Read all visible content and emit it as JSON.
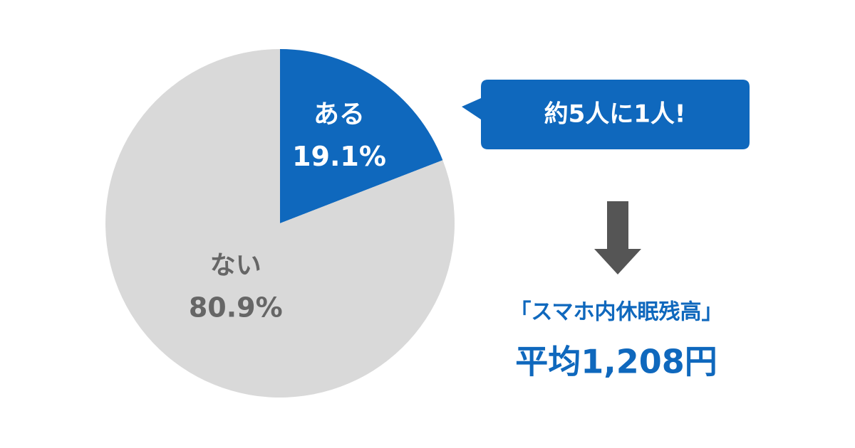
{
  "chart_data": {
    "type": "pie",
    "categories": [
      "ある",
      "ない"
    ],
    "values": [
      19.1,
      80.9
    ],
    "value_labels": [
      "19.1%",
      "80.9%"
    ],
    "colors": [
      "#0f68bd",
      "#d9d9d9"
    ],
    "label_colors": [
      "#ffffff",
      "#666666"
    ],
    "annotations": {
      "callout": "約5人に1人!",
      "heading": "「スマホ内休眠残高」",
      "average": "平均1,208円"
    }
  }
}
